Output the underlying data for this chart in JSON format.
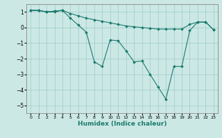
{
  "xlabel": "Humidex (Indice chaleur)",
  "bg_color": "#cce8e4",
  "line_color": "#1a7a6e",
  "grid_color": "#99cccc",
  "xlim": [
    -0.5,
    23.5
  ],
  "ylim": [
    -5.5,
    1.5
  ],
  "yticks": [
    1,
    0,
    -1,
    -2,
    -3,
    -4,
    -5
  ],
  "xticks": [
    0,
    1,
    2,
    3,
    4,
    5,
    6,
    7,
    8,
    9,
    10,
    11,
    12,
    13,
    14,
    15,
    16,
    17,
    18,
    19,
    20,
    21,
    22,
    23
  ],
  "lines": [
    {
      "x": [
        0,
        1,
        2,
        3,
        4,
        5,
        6,
        7,
        8,
        9,
        10,
        11,
        12,
        13,
        14,
        15,
        16,
        17,
        18,
        19,
        20,
        21,
        22,
        23
      ],
      "y": [
        1.1,
        1.1,
        1.0,
        1.05,
        1.1,
        0.9,
        0.75,
        0.6,
        0.5,
        0.4,
        0.3,
        0.2,
        0.1,
        0.05,
        0.0,
        -0.05,
        -0.1,
        -0.1,
        -0.1,
        -0.1,
        0.2,
        0.35,
        0.35,
        -0.15
      ]
    },
    {
      "x": [
        0,
        1,
        2,
        3,
        4,
        5,
        6,
        7,
        8,
        9,
        10,
        11,
        12,
        13,
        14,
        15,
        16,
        17,
        18,
        19,
        20,
        21,
        22,
        23
      ],
      "y": [
        1.1,
        1.1,
        1.0,
        1.05,
        1.1,
        0.6,
        0.15,
        -0.3,
        -2.2,
        -2.5,
        -0.8,
        -0.85,
        -1.5,
        -2.2,
        -2.15,
        -3.0,
        -3.8,
        -4.6,
        -2.5,
        -2.5,
        -0.2,
        0.35,
        0.35,
        -0.15
      ]
    },
    {
      "x": [
        0,
        1,
        2,
        3,
        4
      ],
      "y": [
        1.1,
        1.1,
        1.0,
        1.0,
        1.1
      ]
    }
  ]
}
